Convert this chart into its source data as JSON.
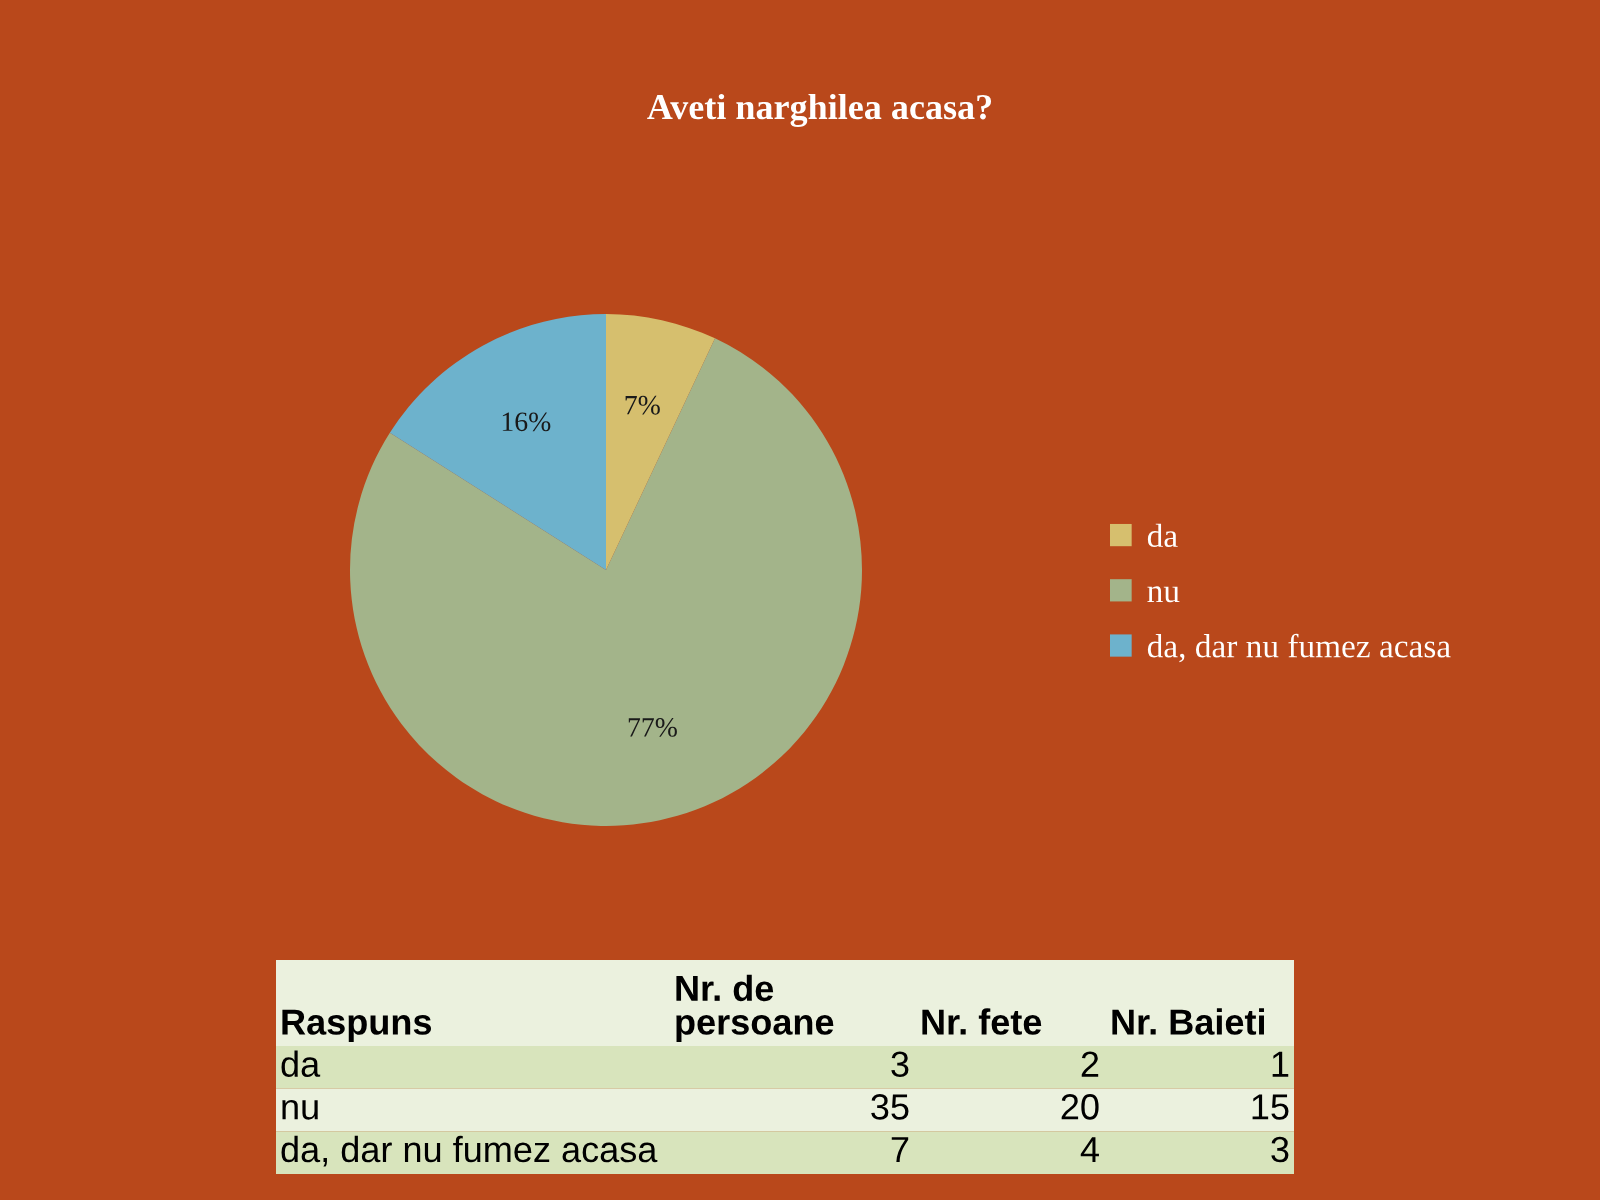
{
  "chart_data": [
    {
      "type": "pie",
      "title": "Aveti narghilea acasa?",
      "categories": [
        "da",
        "nu",
        "da, dar nu fumez acasa"
      ],
      "values": [
        7,
        77,
        16
      ],
      "colors": [
        "#d6bf6e",
        "#a3b48a",
        "#6db2cc"
      ],
      "value_labels": [
        "7%",
        "77%",
        "16%"
      ],
      "legend": "right"
    },
    {
      "type": "other",
      "xlabel": "Raspuns",
      "categories": [
        "da",
        "nu",
        "da, dar nu fumez acasa"
      ],
      "series": [
        {
          "name": "Nr. de\npersoane",
          "colors": [
            "#d8e4bc",
            "#ebf1de",
            "#d8e4bc"
          ],
          "values": [
            3,
            35,
            7
          ]
        },
        {
          "name": "Nr. fete",
          "values": [
            2,
            20,
            4
          ]
        },
        {
          "name": "Nr. Baieti",
          "values": [
            1,
            15,
            3
          ]
        }
      ],
      "data_labels": true
    }
  ]
}
